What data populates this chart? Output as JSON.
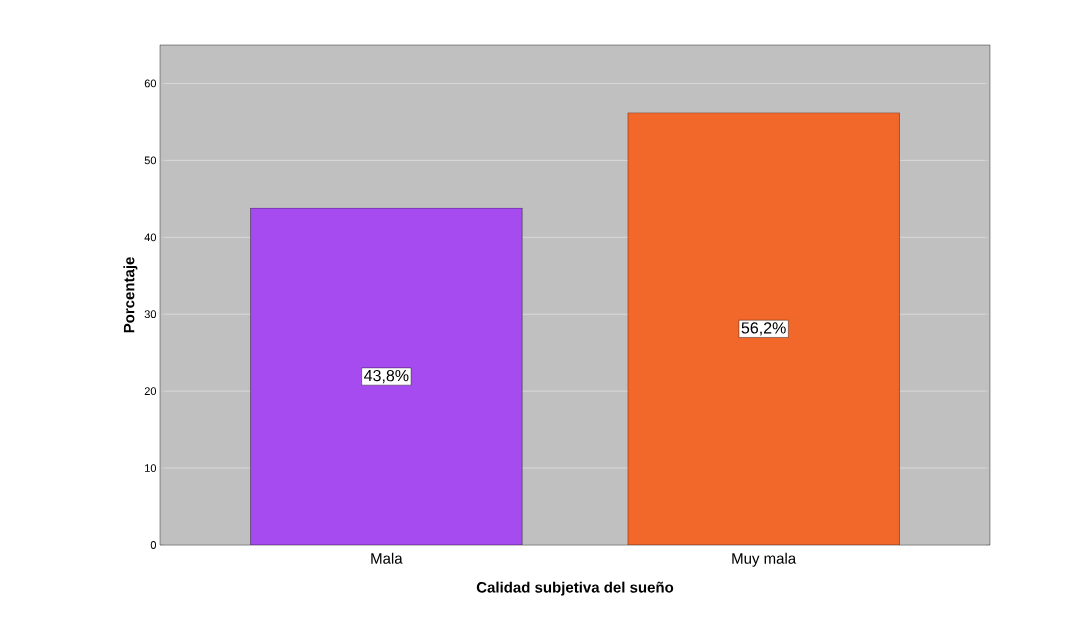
{
  "chart_data": {
    "type": "bar",
    "xlabel": "Calidad subjetiva del sueño",
    "ylabel": "Porcentaje",
    "categories": [
      "Mala",
      "Muy mala"
    ],
    "values": [
      43.8,
      56.2
    ],
    "colors": [
      "#a64bf0",
      "#f2672a"
    ],
    "value_labels": [
      "43,8%",
      "56,2%"
    ],
    "ylim": [
      0,
      65
    ],
    "yticks": [
      0,
      10,
      20,
      30,
      40,
      50,
      60
    ],
    "grid": "y"
  }
}
